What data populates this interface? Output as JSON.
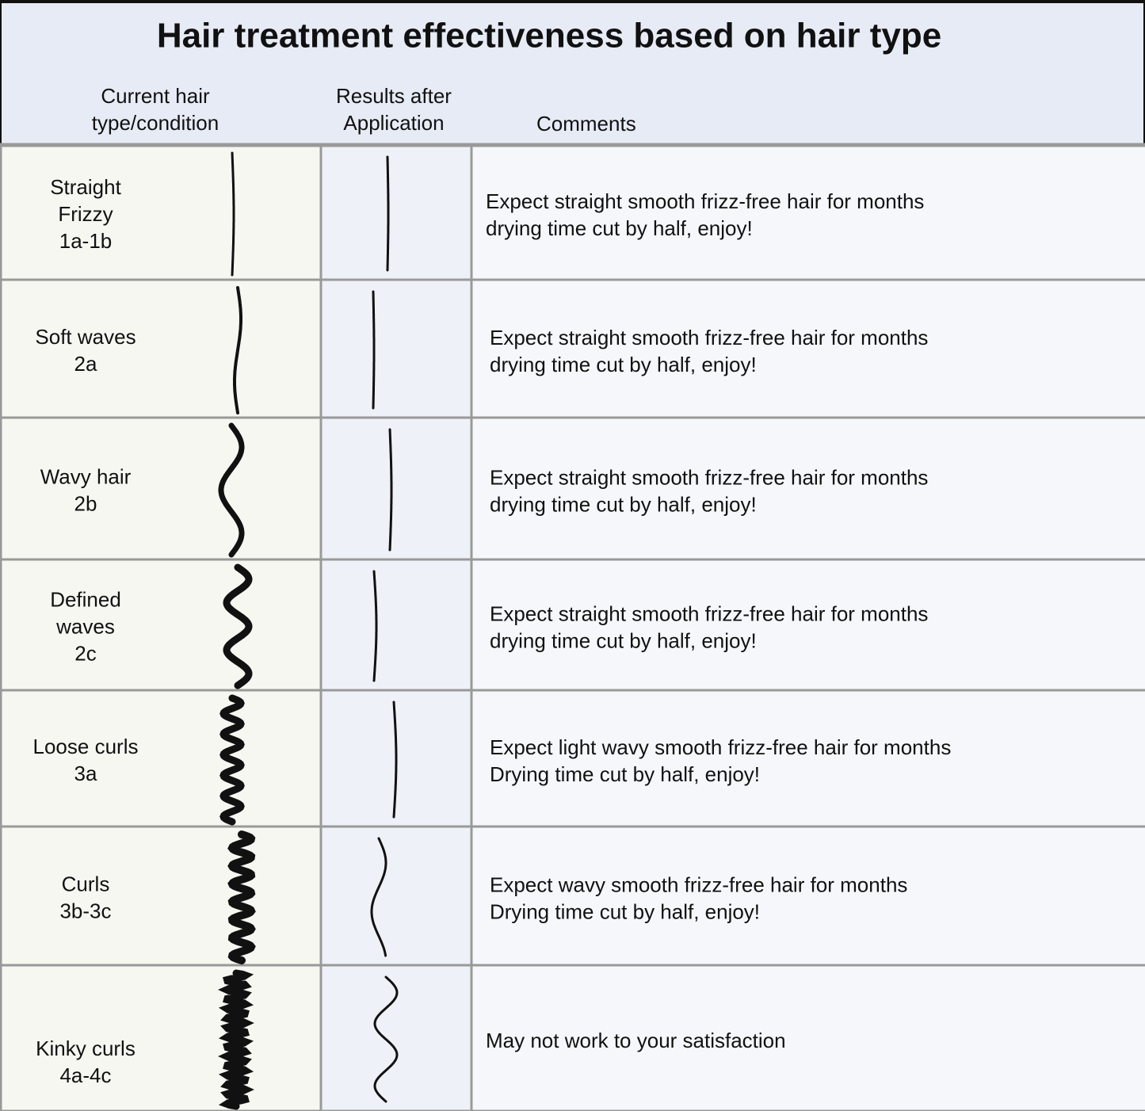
{
  "title": "Hair treatment effectiveness based on hair type",
  "table": {
    "header": [
      [
        "Current hair",
        "type/condition"
      ],
      [
        "Results after",
        "Application"
      ],
      [
        "Comments"
      ]
    ],
    "rows": [
      {
        "type": [
          "Straight",
          "Frizzy",
          "1a-1b"
        ],
        "comment": [
          "Expect straight smooth frizz-free hair for months",
          "drying time cut by half, enjoy!"
        ]
      },
      {
        "type": [
          "Soft waves",
          "2a"
        ],
        "comment": [
          "Expect straight smooth frizz-free hair for months",
          "drying time cut by half, enjoy!"
        ]
      },
      {
        "type": [
          "Wavy hair",
          "2b"
        ],
        "comment": [
          "Expect straight smooth frizz-free hair for months",
          "drying time cut by half, enjoy!"
        ]
      },
      {
        "type": [
          "Defined",
          "waves",
          "2c"
        ],
        "comment": [
          "Expect straight smooth frizz-free hair for months",
          "drying time cut by half, enjoy!"
        ]
      },
      {
        "type": [
          "Loose curls",
          "3a"
        ],
        "comment": [
          "Expect light wavy smooth frizz-free hair for months",
          "Drying time cut by half, enjoy!"
        ]
      },
      {
        "type": [
          "Curls",
          "3b-3c"
        ],
        "comment": [
          "Expect wavy smooth frizz-free hair for months",
          "Drying time cut by half, enjoy!"
        ]
      },
      {
        "type": [
          "Kinky curls",
          "4a-4c"
        ],
        "comment": [
          "May not work to your satisfaction"
        ]
      }
    ]
  }
}
